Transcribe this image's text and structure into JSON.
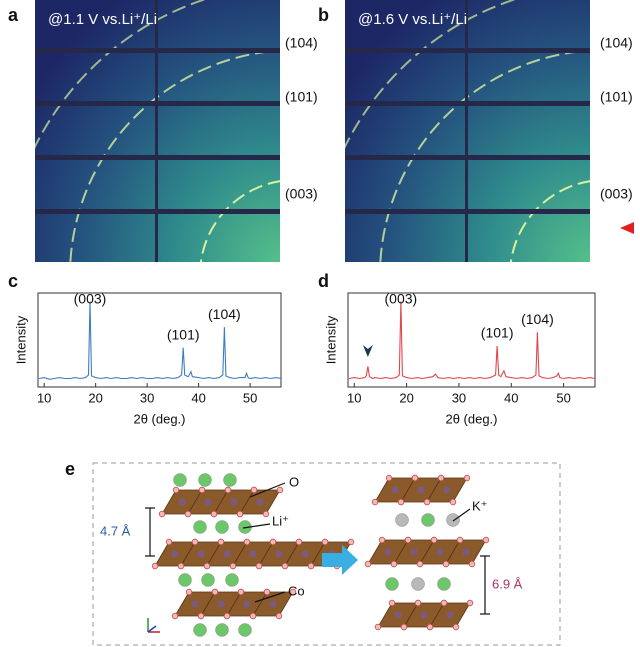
{
  "panels": {
    "a": {
      "label": "a",
      "caption": "@1.1 V vs.Li⁺/Li",
      "peaks": [
        "(104)",
        "(101)",
        "(003)"
      ]
    },
    "b": {
      "label": "b",
      "caption": "@1.6 V vs.Li⁺/Li",
      "peaks": [
        "(104)",
        "(101)",
        "(003)"
      ]
    },
    "e": {
      "label": "e",
      "atom_o": "O",
      "atom_li": "Li⁺",
      "atom_co": "Co",
      "spacing_li": "4.7 Å",
      "atom_k": "K⁺",
      "spacing_k": "6.9 Å"
    }
  },
  "chart_data": [
    {
      "type": "line",
      "label": "c",
      "ylabel": "Intensity",
      "xlabel": "2θ (deg.)",
      "color": "#3d7ebf",
      "xlim": [
        8.8,
        56
      ],
      "xticks": [
        10,
        20,
        30,
        40,
        50
      ],
      "ylim": [
        0,
        110
      ],
      "x": [
        9,
        10,
        11,
        12,
        13,
        14,
        15,
        16,
        17,
        18,
        18.6,
        18.9,
        19.2,
        20,
        21,
        22,
        23,
        24,
        25,
        26,
        27,
        28,
        29,
        30,
        31,
        32,
        33,
        34,
        35,
        36,
        36.7,
        37,
        37.3,
        38,
        38.5,
        38.8,
        40,
        41,
        42,
        43,
        44,
        44.7,
        45,
        45.3,
        46,
        47,
        48,
        49,
        49.3,
        49.6,
        50,
        51,
        52,
        53,
        54,
        55,
        56
      ],
      "values": [
        10,
        11,
        9,
        10,
        11,
        10,
        10,
        11,
        10,
        11,
        14,
        100,
        13,
        11,
        10,
        11,
        10,
        11,
        10,
        10,
        11,
        10,
        11,
        10,
        10,
        11,
        10,
        11,
        10,
        11,
        14,
        46,
        14,
        12,
        18,
        12,
        11,
        10,
        11,
        10,
        11,
        14,
        70,
        13,
        11,
        10,
        11,
        11,
        16,
        11,
        10,
        11,
        10,
        11,
        10,
        11,
        10
      ],
      "annotations": [
        {
          "text": "(003)",
          "x": 18.9
        },
        {
          "text": "(101)",
          "x": 37
        },
        {
          "text": "(104)",
          "x": 45
        }
      ]
    },
    {
      "type": "line",
      "label": "d",
      "ylabel": "Intensity",
      "xlabel": "2θ (deg.)",
      "color": "#e0474c",
      "xlim": [
        8.8,
        56
      ],
      "xticks": [
        10,
        20,
        30,
        40,
        50
      ],
      "ylim": [
        0,
        110
      ],
      "x": [
        9,
        10,
        11,
        12,
        12.3,
        12.6,
        12.9,
        13.5,
        14,
        15,
        16,
        17,
        18,
        18.6,
        18.9,
        19.2,
        20,
        21,
        22,
        23,
        24,
        25,
        25.5,
        26,
        27,
        28,
        29,
        30,
        31,
        32,
        33,
        34,
        35,
        36,
        37,
        37.3,
        37.6,
        38,
        38.6,
        39,
        40,
        41,
        42,
        43,
        44,
        44.7,
        45,
        45.3,
        46,
        47,
        48,
        48.7,
        49,
        49.3,
        50,
        51,
        52,
        53,
        54,
        55,
        56
      ],
      "values": [
        10,
        11,
        10,
        11,
        13,
        24,
        12,
        10,
        11,
        10,
        11,
        10,
        11,
        14,
        100,
        13,
        11,
        10,
        11,
        10,
        11,
        12,
        15,
        11,
        10,
        11,
        10,
        11,
        10,
        11,
        10,
        11,
        10,
        11,
        14,
        48,
        14,
        12,
        19,
        12,
        11,
        10,
        11,
        10,
        11,
        14,
        64,
        13,
        11,
        10,
        11,
        13,
        16,
        11,
        10,
        11,
        10,
        11,
        10,
        11,
        10
      ],
      "marker_x": 12.6,
      "annotations": [
        {
          "text": "(003)",
          "x": 18.9
        },
        {
          "text": "(101)",
          "x": 37.3
        },
        {
          "text": "(104)",
          "x": 45
        }
      ]
    }
  ]
}
